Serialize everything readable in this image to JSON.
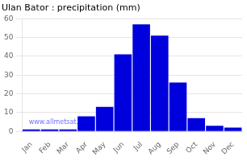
{
  "chart_data": {
    "type": "bar",
    "title": "Ulan Bator : precipitation (mm)",
    "categories": [
      "Jan",
      "Feb",
      "Mar",
      "Apr",
      "May",
      "Jun",
      "Jul",
      "Aug",
      "Sep",
      "Oct",
      "Nov",
      "Dec"
    ],
    "values": [
      1,
      1,
      1,
      8,
      13,
      41,
      57,
      51,
      26,
      7,
      3,
      2
    ],
    "color": "#0000DD",
    "ylim": [
      0,
      60
    ],
    "yticks": [
      0,
      10,
      20,
      30,
      40,
      50,
      60
    ],
    "grid": true,
    "annotations": [
      "www.allmetsat.com"
    ]
  }
}
